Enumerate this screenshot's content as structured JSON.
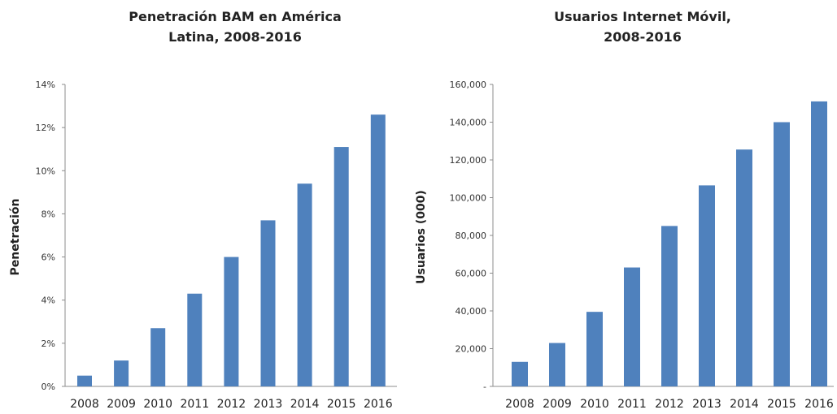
{
  "chart_data": [
    {
      "type": "bar",
      "title_lines": [
        "Penetración BAM en América",
        "Latina, 2008-2016"
      ],
      "xlabel": "",
      "ylabel": "Penetración",
      "categories": [
        "2008",
        "2009",
        "2010",
        "2011",
        "2012",
        "2013",
        "2014",
        "2015",
        "2016"
      ],
      "values": [
        0.5,
        1.2,
        2.7,
        4.3,
        6.0,
        7.7,
        9.4,
        11.1,
        12.6
      ],
      "yticks": [
        "0%",
        "2%",
        "4%",
        "6%",
        "8%",
        "10%",
        "12%",
        "14%"
      ],
      "ylim": [
        0,
        14
      ],
      "grid": false,
      "color": "#4F81BD"
    },
    {
      "type": "bar",
      "title_lines": [
        "Usuarios Internet Móvil,",
        "2008-2016"
      ],
      "xlabel": "",
      "ylabel": "Usuarios (000)",
      "categories": [
        "2008",
        "2009",
        "2010",
        "2011",
        "2012",
        "2013",
        "2014",
        "2015",
        "2016"
      ],
      "values": [
        13000,
        23000,
        39500,
        63000,
        85000,
        106500,
        125500,
        140000,
        151000
      ],
      "yticks": [
        "-",
        "20,000",
        "40,000",
        "60,000",
        "80,000",
        "100,000",
        "120,000",
        "140,000",
        "160,000"
      ],
      "ylim": [
        0,
        160000
      ],
      "grid": false,
      "color": "#4F81BD"
    }
  ]
}
